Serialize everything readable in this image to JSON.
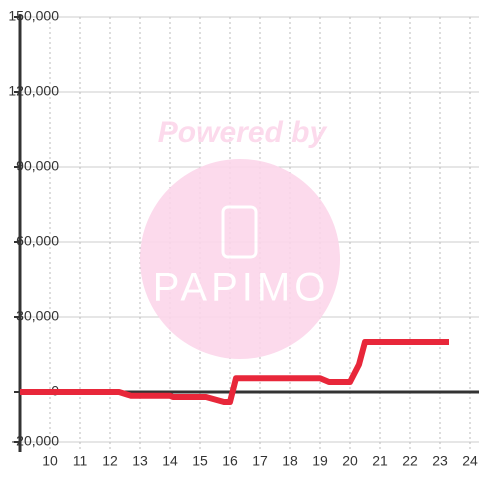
{
  "chart_data": {
    "type": "line",
    "watermark_top": "Powered by",
    "watermark_brand": "PAPIMO",
    "x": [
      9,
      12.3,
      12.7,
      14,
      14.1,
      15.2,
      15.8,
      16,
      16.2,
      19,
      19.3,
      20,
      20.3,
      20.5,
      23.3
    ],
    "series": [
      {
        "color": "#e8273a",
        "values": [
          0,
          0,
          -1500,
          -1500,
          -2000,
          -2000,
          -4000,
          -4000,
          5500,
          5500,
          4000,
          4000,
          11000,
          20000,
          20000
        ]
      }
    ],
    "xlim": [
      9,
      24.3
    ],
    "xticks": [
      10,
      11,
      12,
      13,
      14,
      15,
      16,
      17,
      18,
      19,
      20,
      21,
      22,
      23,
      24
    ],
    "ylim": [
      -24000,
      150000
    ],
    "yticks": [
      {
        "value": -20000,
        "label": "-20,000"
      },
      0,
      {
        "value": 30000,
        "label": "30,000"
      },
      {
        "value": 60000,
        "label": "60,000"
      },
      {
        "value": 90000,
        "label": "90,000"
      },
      {
        "value": 120000,
        "label": "120,000"
      },
      {
        "value": 150000,
        "label": "150,000"
      }
    ],
    "grid": true
  }
}
